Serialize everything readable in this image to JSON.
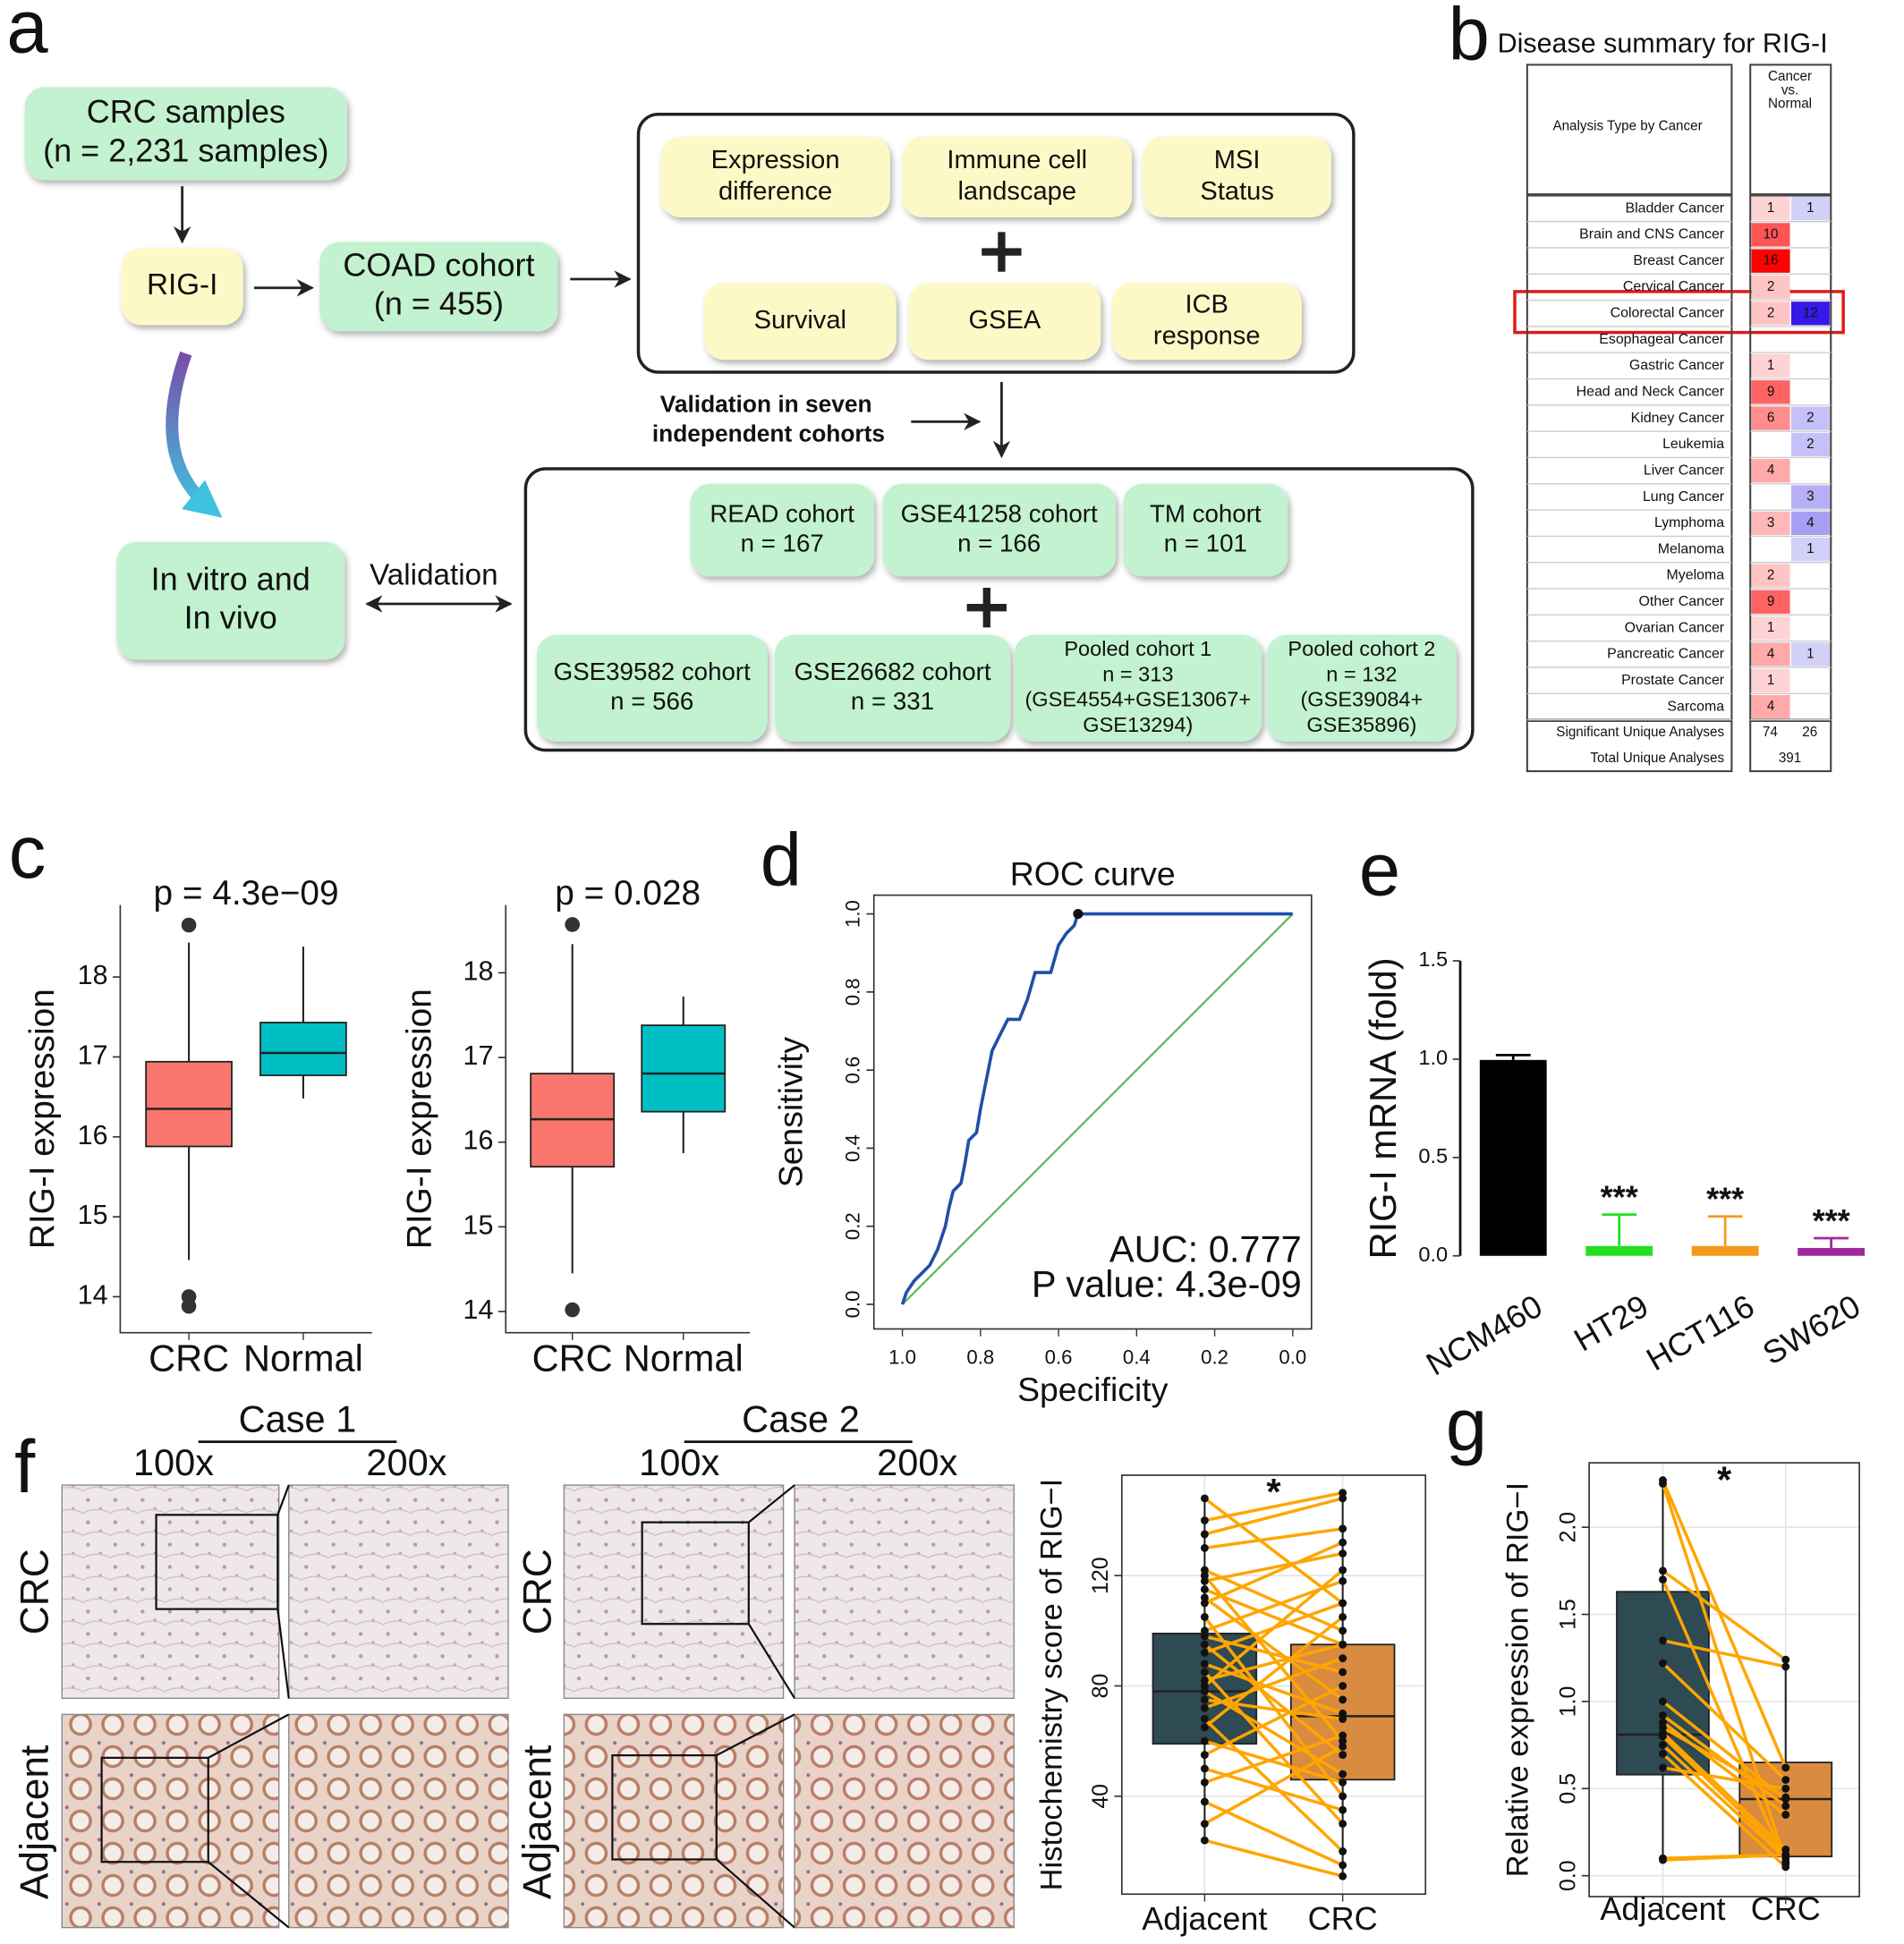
{
  "panel_labels": [
    "a",
    "b",
    "c",
    "d",
    "e",
    "f",
    "g"
  ],
  "diagram": {
    "nodes": [
      {
        "lines": [
          "CRC samples",
          "(n = 2,231 samples)"
        ]
      },
      {
        "lines": [
          "RIG-I"
        ]
      },
      {
        "lines": [
          "COAD cohort",
          "(n = 455)"
        ]
      },
      {
        "lines": [
          "Expression",
          "difference"
        ]
      },
      {
        "lines": [
          "Immune cell",
          "landscape"
        ]
      },
      {
        "lines": [
          "MSI",
          "Status"
        ]
      },
      {
        "lines": [
          "Survival"
        ]
      },
      {
        "lines": [
          "GSEA"
        ]
      },
      {
        "lines": [
          "ICB",
          "response"
        ]
      },
      {
        "lines": [
          "In vitro and",
          "In vivo"
        ]
      },
      {
        "lines": [
          "READ cohort",
          "n = 167"
        ]
      },
      {
        "lines": [
          "GSE41258 cohort",
          "n = 166"
        ]
      },
      {
        "lines": [
          "TM cohort",
          "n = 101"
        ]
      },
      {
        "lines": [
          "GSE39582 cohort",
          "n = 566"
        ]
      },
      {
        "lines": [
          "GSE26682 cohort",
          "n = 331"
        ]
      },
      {
        "lines": [
          "Pooled cohort 1",
          "n = 313",
          "(GSE4554+GSE13067+",
          "GSE13294)"
        ]
      },
      {
        "lines": [
          "Pooled cohort 2",
          "n = 132",
          "(GSE39084+",
          "GSE35896)"
        ]
      }
    ],
    "validation_note": [
      "Validation in seven",
      "independent cohorts"
    ],
    "validation": "Validation"
  },
  "table": {
    "title": "Disease summary for RIG-I",
    "row_header": "Analysis Type by Cancer",
    "column_header": [
      "Cancer",
      "vs.",
      "Normal"
    ],
    "highlight": 4,
    "rows": [
      {
        "name": "Bladder Cancer",
        "up": 1,
        "down": 1
      },
      {
        "name": "Brain and CNS Cancer",
        "up": 10,
        "down": null
      },
      {
        "name": "Breast Cancer",
        "up": 16,
        "down": null
      },
      {
        "name": "Cervical Cancer",
        "up": 2,
        "down": null
      },
      {
        "name": "Colorectal Cancer",
        "up": 2,
        "down": 12
      },
      {
        "name": "Esophageal Cancer",
        "up": null,
        "down": null
      },
      {
        "name": "Gastric Cancer",
        "up": 1,
        "down": null
      },
      {
        "name": "Head and Neck Cancer",
        "up": 9,
        "down": null
      },
      {
        "name": "Kidney Cancer",
        "up": 6,
        "down": 2
      },
      {
        "name": "Leukemia",
        "up": null,
        "down": 2
      },
      {
        "name": "Liver Cancer",
        "up": 4,
        "down": null
      },
      {
        "name": "Lung Cancer",
        "up": null,
        "down": 3
      },
      {
        "name": "Lymphoma",
        "up": 3,
        "down": 4
      },
      {
        "name": "Melanoma",
        "up": null,
        "down": 1
      },
      {
        "name": "Myeloma",
        "up": 2,
        "down": null
      },
      {
        "name": "Other Cancer",
        "up": 9,
        "down": null
      },
      {
        "name": "Ovarian Cancer",
        "up": 1,
        "down": null
      },
      {
        "name": "Pancreatic Cancer",
        "up": 4,
        "down": 1
      },
      {
        "name": "Prostate Cancer",
        "up": 1,
        "down": null
      },
      {
        "name": "Sarcoma",
        "up": 4,
        "down": null
      }
    ],
    "significant": {
      "name": "Significant Unique Analyses",
      "up": 74,
      "down": 26
    },
    "total": {
      "name": "Total Unique Analyses",
      "value": 391
    }
  },
  "figure_f": {
    "case_titles": [
      "Case 1",
      "Case 2"
    ],
    "magnifications": [
      "100x",
      "200x"
    ],
    "row_labels": [
      "CRC",
      "Adjacent"
    ]
  },
  "chart_data": [
    {
      "type": "box",
      "title": "p = 4.3e−09",
      "y_label": "RIG-I expression",
      "categories": [
        "CRC",
        "Normal"
      ],
      "colors": [
        "#F8766D",
        "#00BFC4"
      ],
      "boxes": [
        {
          "low": 14.46,
          "q1": 15.88,
          "median": 16.35,
          "q3": 16.94,
          "high": 18.43,
          "outliers": [
            18.65,
            14.0,
            13.88
          ]
        },
        {
          "low": 16.48,
          "q1": 16.77,
          "median": 17.05,
          "q3": 17.43,
          "high": 18.38,
          "outliers": []
        }
      ],
      "ylim": [
        13.55,
        18.9
      ],
      "yticks": [
        14,
        15,
        16,
        17,
        18
      ],
      "grid": false,
      "frame": false
    },
    {
      "type": "box",
      "title": "p = 0.028",
      "y_label": "RIG-I expression",
      "categories": [
        "CRC",
        "Normal"
      ],
      "colors": [
        "#F8766D",
        "#00BFC4"
      ],
      "boxes": [
        {
          "low": 14.45,
          "q1": 15.71,
          "median": 16.27,
          "q3": 16.81,
          "high": 18.34,
          "outliers": [
            18.57,
            14.02
          ]
        },
        {
          "low": 15.87,
          "q1": 16.36,
          "median": 16.81,
          "q3": 17.38,
          "high": 17.72,
          "outliers": []
        }
      ],
      "ylim": [
        13.75,
        18.8
      ],
      "yticks": [
        14,
        15,
        16,
        17,
        18
      ],
      "grid": false,
      "frame": false
    },
    {
      "type": "line",
      "title": "ROC curve",
      "x_label": "Specificity",
      "y_label": "Sensitivity",
      "color": "#1f4fa8",
      "diagonal_color": "#5cb85c",
      "x": [
        1,
        0.99,
        0.97,
        0.95,
        0.93,
        0.91,
        0.89,
        0.88,
        0.87,
        0.85,
        0.84,
        0.83,
        0.81,
        0.8,
        0.79,
        0.78,
        0.77,
        0.75,
        0.73,
        0.7,
        0.68,
        0.66,
        0.62,
        0.6,
        0.58,
        0.56,
        0.55,
        0
      ],
      "values": [
        0,
        0.03,
        0.06,
        0.08,
        0.1,
        0.14,
        0.2,
        0.25,
        0.29,
        0.31,
        0.36,
        0.42,
        0.44,
        0.5,
        0.55,
        0.6,
        0.65,
        0.69,
        0.73,
        0.73,
        0.78,
        0.85,
        0.85,
        0.92,
        0.95,
        0.97,
        1,
        1
      ],
      "cutoff": {
        "x": 0.55,
        "y": 1
      },
      "annotations": [
        "AUC: 0.777",
        "P value: 4.3e-09"
      ],
      "xlim": [
        1.073,
        -0.048
      ],
      "xticks": [
        {
          "value": 1,
          "label": "1.0"
        },
        0.8,
        0.6,
        0.4,
        0.2,
        {
          "value": 0,
          "label": "0.0"
        }
      ],
      "ylim": [
        -0.063,
        1.048
      ],
      "yticks": [
        {
          "value": 0,
          "label": "0.0"
        },
        0.2,
        0.4,
        0.6,
        0.8,
        {
          "value": 1,
          "label": "1.0"
        }
      ]
    },
    {
      "type": "bar",
      "y_label": "RIG-I mRNA (fold)",
      "categories": [
        "NCM460",
        "HT29",
        "HCT116",
        "SW620"
      ],
      "values": [
        0.996,
        0.05,
        0.05,
        0.04
      ],
      "errors": [
        0.025,
        0.16,
        0.15,
        0.05
      ],
      "colors": [
        "#000000",
        "#22e022",
        "#f59a1a",
        "#a0289c"
      ],
      "annotations": [
        null,
        "***",
        "***",
        "***"
      ],
      "ylim": [
        0,
        1.5
      ],
      "yticks": [
        {
          "value": 0,
          "label": "0.0"
        },
        0.5,
        {
          "value": 1,
          "label": "1.0"
        },
        1.5
      ]
    },
    {
      "type": "box",
      "y_label": "Histochemistry score of RIG−I",
      "categories": [
        "Adjacent",
        "CRC"
      ],
      "colors": [
        "#2e4a52",
        "#d98b3f"
      ],
      "boxes": [
        {
          "low": 24,
          "q1": 59,
          "median": 78,
          "q3": 99,
          "high": 148,
          "outliers": []
        },
        {
          "low": 11,
          "q1": 46,
          "median": 69,
          "q3": 95,
          "high": 150,
          "outliers": []
        }
      ],
      "pairs": [
        [
          148,
          110
        ],
        [
          140,
          150
        ],
        [
          135,
          148
        ],
        [
          130,
          137
        ],
        [
          122,
          100
        ],
        [
          120,
          60
        ],
        [
          118,
          128
        ],
        [
          115,
          95
        ],
        [
          112,
          75
        ],
        [
          110,
          132
        ],
        [
          105,
          40
        ],
        [
          100,
          118
        ],
        [
          98,
          85
        ],
        [
          95,
          55
        ],
        [
          92,
          110
        ],
        [
          88,
          70
        ],
        [
          85,
          30
        ],
        [
          82,
          95
        ],
        [
          80,
          122
        ],
        [
          78,
          48
        ],
        [
          75,
          68
        ],
        [
          72,
          90
        ],
        [
          68,
          20
        ],
        [
          65,
          105
        ],
        [
          60,
          45
        ],
        [
          55,
          80
        ],
        [
          50,
          35
        ],
        [
          45,
          62
        ],
        [
          38,
          15
        ],
        [
          30,
          58
        ],
        [
          24,
          11
        ]
      ],
      "pair_color": "#FFA500",
      "annotation": "*",
      "annotation_color": "#e01010",
      "ylim": [
        4.5,
        156.4
      ],
      "yticks": [
        40,
        80,
        120
      ],
      "grid": true,
      "frame": true
    },
    {
      "type": "box",
      "y_label": "Relative expression of RIG−I",
      "categories": [
        "Adjacent",
        "CRC"
      ],
      "colors": [
        "#2e4a52",
        "#d98b3f"
      ],
      "boxes": [
        {
          "low": 0.09,
          "q1": 0.58,
          "median": 0.81,
          "q3": 1.63,
          "high": 2.27,
          "outliers": []
        },
        {
          "low": 0.05,
          "q1": 0.11,
          "median": 0.44,
          "q3": 0.65,
          "high": 1.24,
          "outliers": []
        }
      ],
      "pairs": [
        [
          2.27,
          0.62
        ],
        [
          2.25,
          0.08
        ],
        [
          1.75,
          1.24
        ],
        [
          1.7,
          0.07
        ],
        [
          1.35,
          1.2
        ],
        [
          1.22,
          0.55
        ],
        [
          1.0,
          0.44
        ],
        [
          0.92,
          0.4
        ],
        [
          0.88,
          0.35
        ],
        [
          0.85,
          0.45
        ],
        [
          0.82,
          0.15
        ],
        [
          0.8,
          0.12
        ],
        [
          0.75,
          0.1
        ],
        [
          0.7,
          0.05
        ],
        [
          0.62,
          0.5
        ],
        [
          0.1,
          0.12
        ],
        [
          0.09,
          0.12
        ]
      ],
      "pair_color": "#FFA500",
      "annotation": "*",
      "annotation_color": "#e01010",
      "ylim": [
        -0.12,
        2.37
      ],
      "yticks": [
        {
          "value": 0,
          "label": "0.0"
        },
        0.5,
        {
          "value": 1,
          "label": "1.0"
        },
        1.5,
        {
          "value": 2,
          "label": "2.0"
        }
      ],
      "grid": true,
      "frame": true
    }
  ]
}
